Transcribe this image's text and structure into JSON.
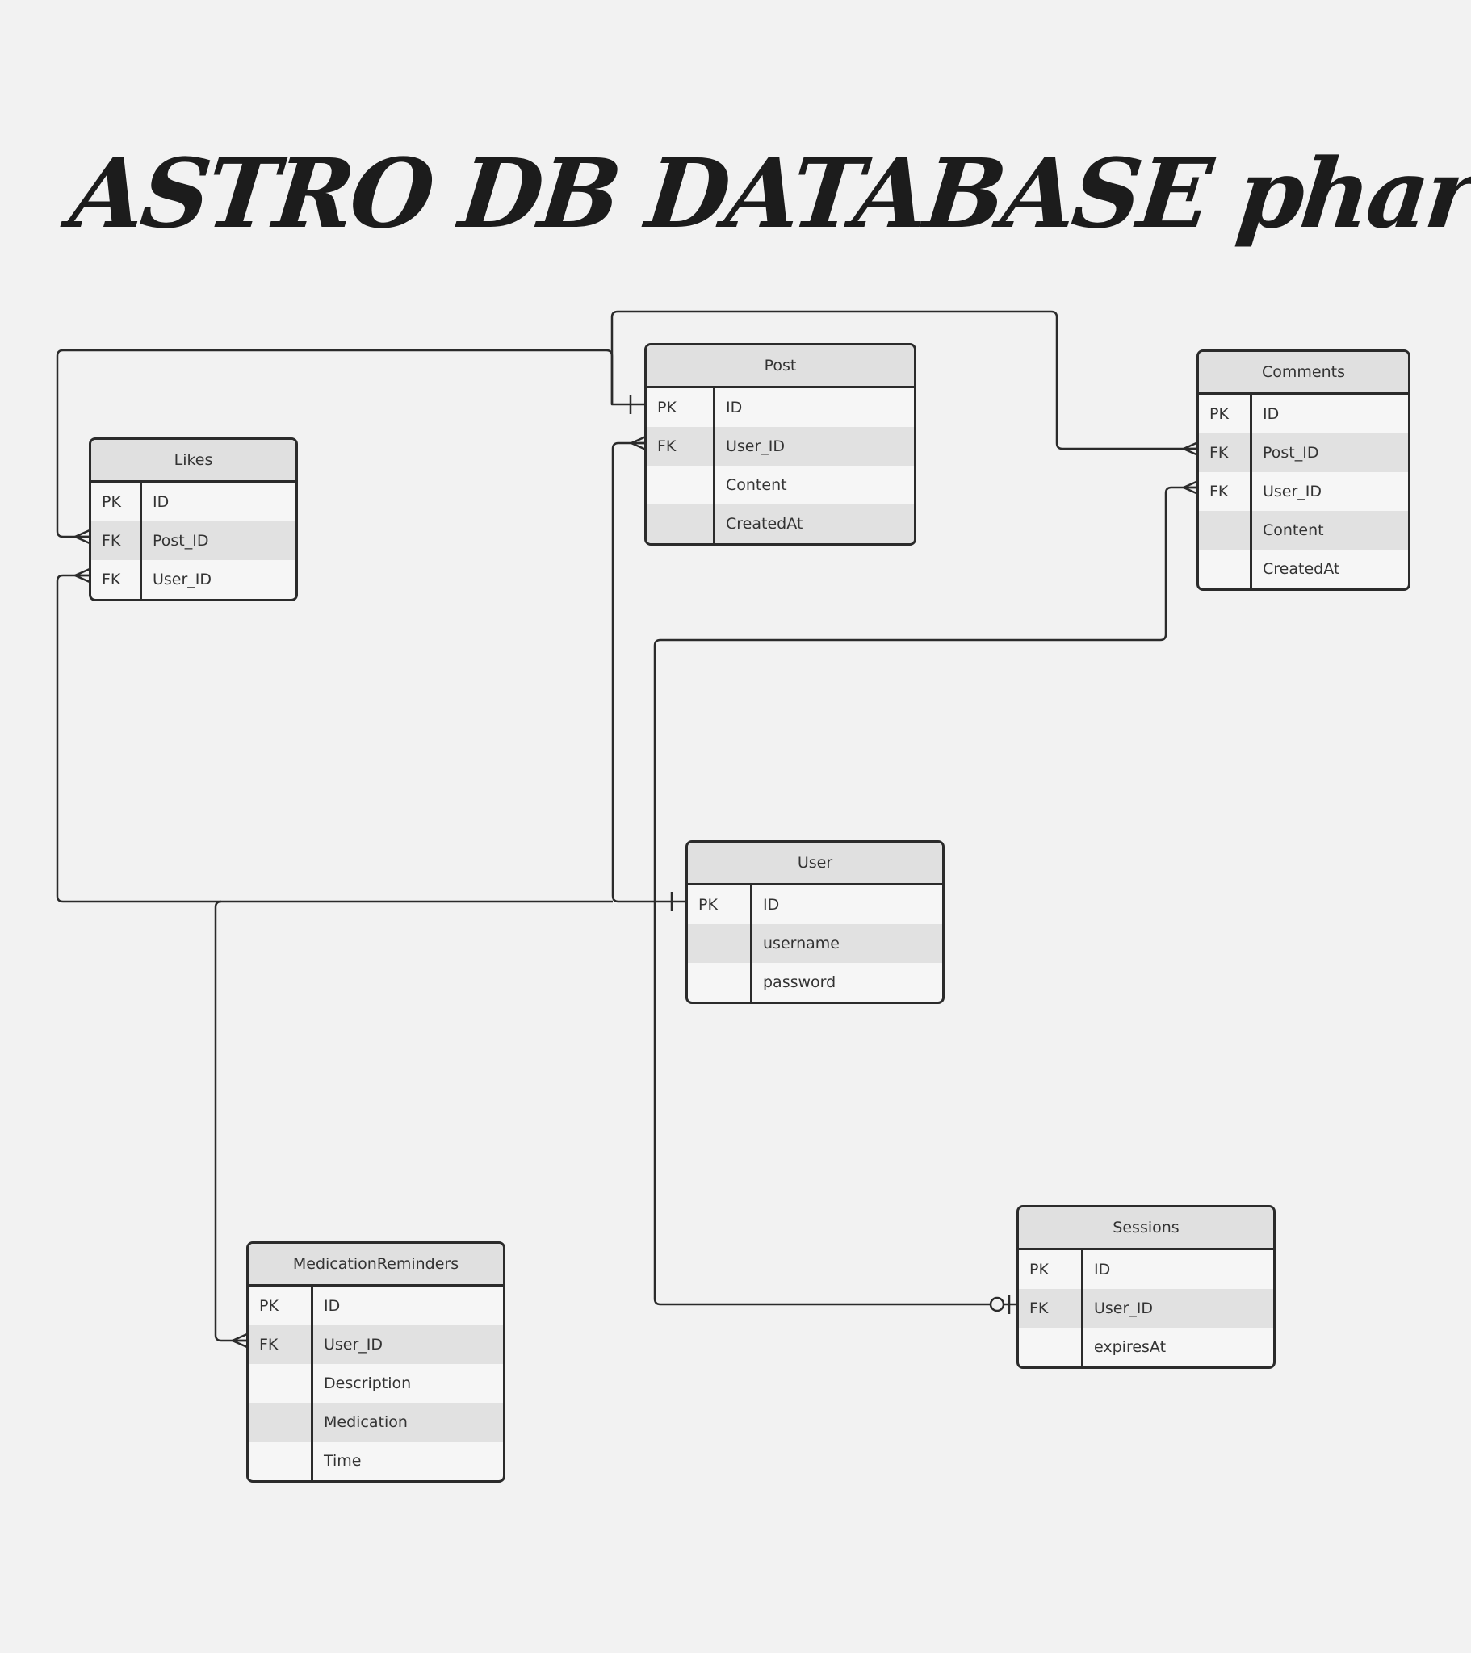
{
  "title": "ASTRO DB DATABASE pharmAI",
  "entities": {
    "post": {
      "name": "Post",
      "rows": [
        {
          "key": "PK",
          "field": "ID"
        },
        {
          "key": "FK",
          "field": "User_ID"
        },
        {
          "key": "",
          "field": "Content"
        },
        {
          "key": "",
          "field": "CreatedAt"
        }
      ]
    },
    "comments": {
      "name": "Comments",
      "rows": [
        {
          "key": "PK",
          "field": "ID"
        },
        {
          "key": "FK",
          "field": "Post_ID"
        },
        {
          "key": "FK",
          "field": "User_ID"
        },
        {
          "key": "",
          "field": "Content"
        },
        {
          "key": "",
          "field": "CreatedAt"
        }
      ]
    },
    "likes": {
      "name": "Likes",
      "rows": [
        {
          "key": "PK",
          "field": "ID"
        },
        {
          "key": "FK",
          "field": "Post_ID"
        },
        {
          "key": "FK",
          "field": "User_ID"
        }
      ]
    },
    "user": {
      "name": "User",
      "rows": [
        {
          "key": "PK",
          "field": "ID"
        },
        {
          "key": "",
          "field": "username"
        },
        {
          "key": "",
          "field": "password"
        }
      ]
    },
    "sessions": {
      "name": "Sessions",
      "rows": [
        {
          "key": "PK",
          "field": "ID"
        },
        {
          "key": "FK",
          "field": "User_ID"
        },
        {
          "key": "",
          "field": "expiresAt"
        }
      ]
    },
    "medication_reminders": {
      "name": "MedicationReminders",
      "rows": [
        {
          "key": "PK",
          "field": "ID"
        },
        {
          "key": "FK",
          "field": "User_ID"
        },
        {
          "key": "",
          "field": "Description"
        },
        {
          "key": "",
          "field": "Medication"
        },
        {
          "key": "",
          "field": "Time"
        }
      ]
    }
  },
  "relationships": [
    {
      "from": "post.ID",
      "to": "likes.Post_ID",
      "from_end": "one",
      "to_end": "many"
    },
    {
      "from": "post.ID",
      "to": "comments.Post_ID",
      "from_end": "one",
      "to_end": "many"
    },
    {
      "from": "user.ID",
      "to": "post.User_ID",
      "from_end": "one",
      "to_end": "many"
    },
    {
      "from": "user.ID",
      "to": "comments.User_ID",
      "from_end": "one",
      "to_end": "many"
    },
    {
      "from": "user.ID",
      "to": "likes.User_ID",
      "from_end": "one",
      "to_end": "many"
    },
    {
      "from": "user.ID",
      "to": "medication_reminders.User_ID",
      "from_end": "one",
      "to_end": "many"
    },
    {
      "from": "user.ID",
      "to": "sessions.User_ID",
      "from_end": "one",
      "to_end": "zero-or-one"
    }
  ]
}
